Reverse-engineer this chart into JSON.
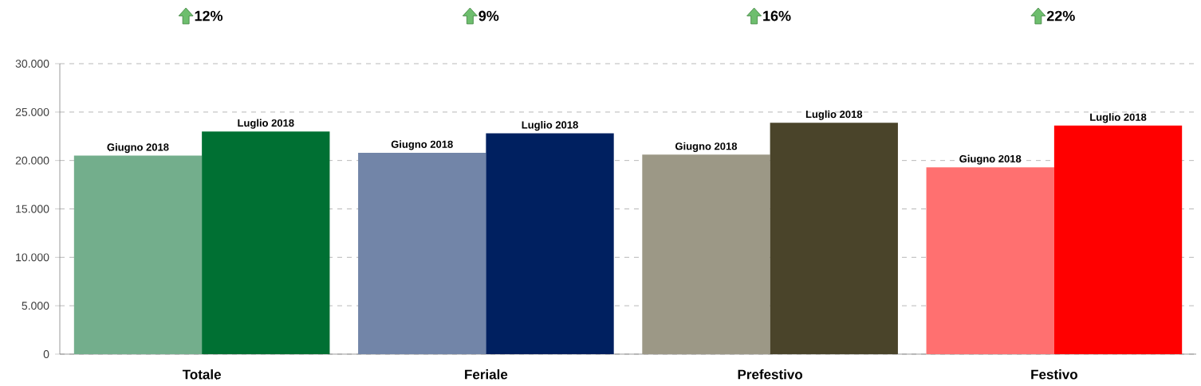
{
  "chart_data": {
    "type": "bar",
    "categories": [
      "Totale",
      "Feriale",
      "Prefestivo",
      "Festivo"
    ],
    "series": [
      {
        "name": "Giugno 2018",
        "colors": [
          "#73ae8c",
          "#7285a8",
          "#9c9886",
          "#ff7070"
        ],
        "values": [
          20500,
          20800,
          20600,
          19300
        ]
      },
      {
        "name": "Luglio 2018",
        "colors": [
          "#007033",
          "#002060",
          "#4a442a",
          "#ff0000"
        ],
        "values": [
          23000,
          22800,
          23900,
          23600
        ]
      }
    ],
    "ylim": [
      0,
      30000
    ],
    "yticks": [
      {
        "value": 0,
        "label": "0"
      },
      {
        "value": 5000,
        "label": "5.000"
      },
      {
        "value": 10000,
        "label": "10.000"
      },
      {
        "value": 15000,
        "label": "15.000"
      },
      {
        "value": 20000,
        "label": "20.000"
      },
      {
        "value": 25000,
        "label": "25.000"
      },
      {
        "value": 30000,
        "label": "30.000"
      }
    ],
    "grid": "y",
    "annotations": [
      "12%",
      "9%",
      "16%",
      "22%"
    ]
  }
}
